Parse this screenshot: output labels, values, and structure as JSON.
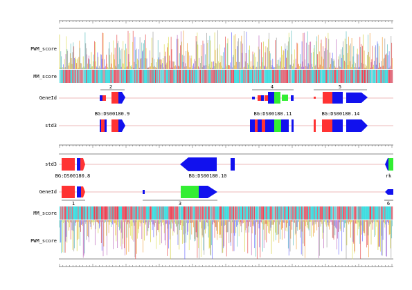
{
  "tracks": {
    "top": [
      {
        "key": "pwm",
        "label": "PWM_score"
      },
      {
        "key": "mm",
        "label": "MM_score"
      },
      {
        "key": "geneid",
        "label": "GeneId"
      },
      {
        "key": "std3",
        "label": "std3"
      }
    ],
    "bottom": [
      {
        "key": "std3",
        "label": "std3"
      },
      {
        "key": "geneid",
        "label": "GeneId"
      },
      {
        "key": "mm",
        "label": "MM_score"
      },
      {
        "key": "pwm",
        "label": "PWM_score"
      }
    ]
  },
  "top_genes": [
    {
      "number": "2",
      "name": "BG:DS00180.9"
    },
    {
      "number": "4",
      "name": "BG:DS00180.11"
    },
    {
      "number": "5",
      "name": "BG:DS00180.14"
    }
  ],
  "bottom_genes": [
    {
      "number": "1",
      "name": "BG:DS00180.8"
    },
    {
      "number": "3",
      "name": "BG:DS00180.10"
    },
    {
      "number": "6",
      "name": "rk"
    }
  ],
  "colors": {
    "exon_red": "#ff3333",
    "exon_blue": "#1111ee",
    "exon_green": "#33ee33",
    "cyan": "#40dde0",
    "pink": "#e07080",
    "guide": "#e8a0a0"
  }
}
